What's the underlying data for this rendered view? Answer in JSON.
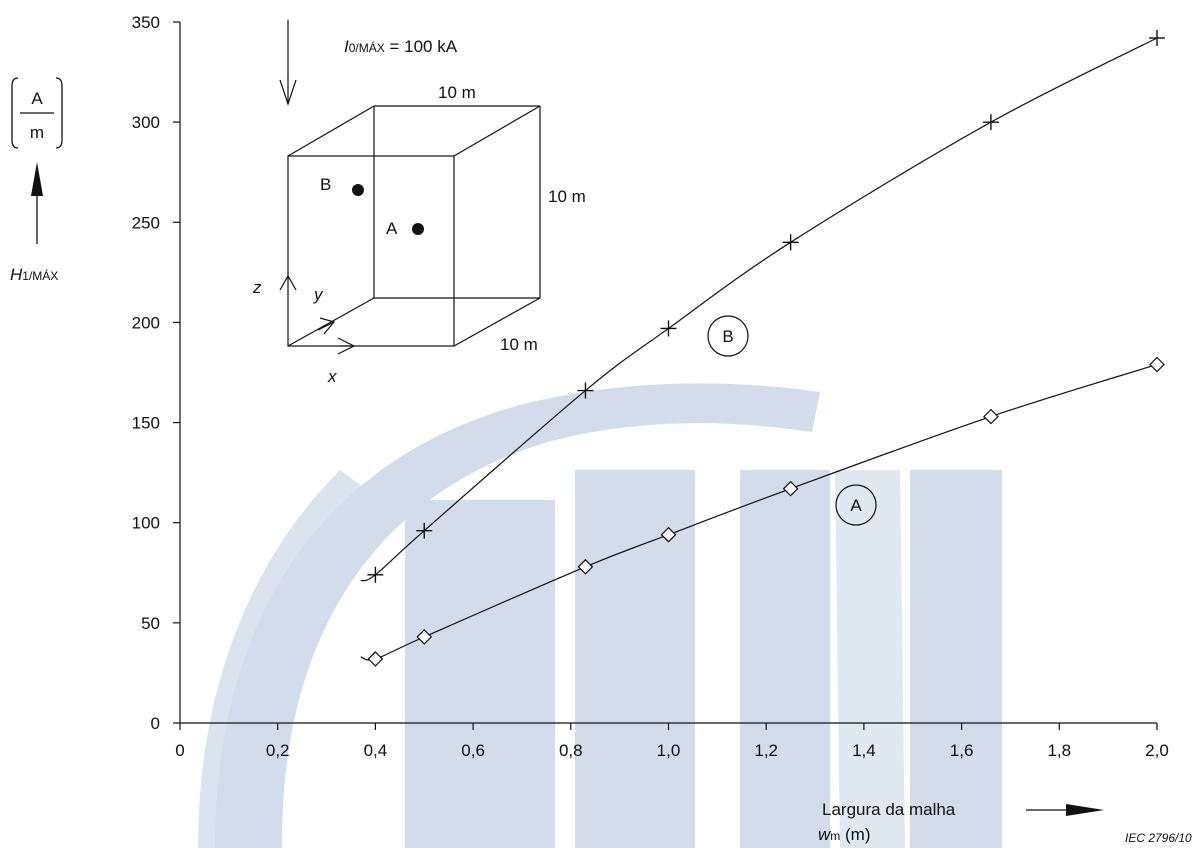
{
  "chart_data": {
    "type": "line",
    "y_unit_fraction": {
      "numerator": "A",
      "denominator": "m"
    },
    "y_label": {
      "main": "H",
      "sub": "1/MÁX"
    },
    "x_label": {
      "line1": "Largura da malha",
      "main": "w",
      "sub": "m",
      "suffix": " (m)"
    },
    "x_ticks": [
      "0",
      "0,2",
      "0,4",
      "0,6",
      "0,8",
      "1,0",
      "1,2",
      "1,4",
      "1,6",
      "1,8",
      "2,0"
    ],
    "y_ticks": [
      "0",
      "50",
      "100",
      "150",
      "200",
      "250",
      "300",
      "350"
    ],
    "xlim": [
      0,
      2.0
    ],
    "ylim": [
      0,
      350
    ],
    "grid": false,
    "series": [
      {
        "name": "B",
        "marker": "plus",
        "x": [
          0.4,
          0.5,
          0.83,
          1.0,
          1.25,
          1.66,
          2.0
        ],
        "y": [
          74,
          96,
          166,
          197,
          240,
          300,
          342
        ],
        "curve_start": [
          0.37,
          71
        ]
      },
      {
        "name": "A",
        "marker": "diamond",
        "x": [
          0.4,
          0.5,
          0.83,
          1.0,
          1.25,
          1.66,
          2.0
        ],
        "y": [
          32,
          43,
          78,
          94,
          117,
          153,
          179
        ],
        "curve_start": [
          0.37,
          33
        ]
      }
    ],
    "inset": {
      "current_label": {
        "main": "I",
        "sub": "0/MÁX",
        "suffix": " = 100 kA"
      },
      "dim_top": "10 m",
      "dim_side": "10 m",
      "dim_depth": "10 m",
      "point_a": "A",
      "point_b": "B",
      "axis_x": "x",
      "axis_y": "y",
      "axis_z": "z"
    },
    "figure_ref": "IEC  2796/10"
  }
}
